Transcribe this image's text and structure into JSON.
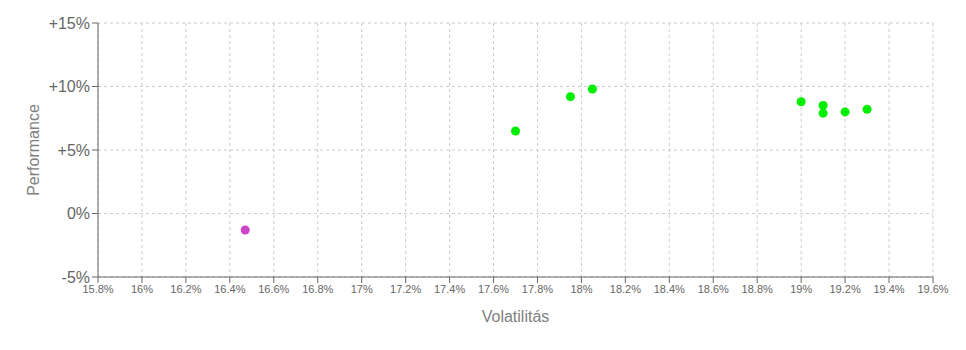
{
  "chart_data": {
    "type": "scatter",
    "xlabel": "Volatilitás",
    "ylabel": "Performance",
    "xlim": [
      0.158,
      0.196
    ],
    "ylim": [
      -0.05,
      0.15
    ],
    "xticks": [
      {
        "value": 0.158,
        "label": "15.8%"
      },
      {
        "value": 0.16,
        "label": "16%"
      },
      {
        "value": 0.162,
        "label": "16.2%"
      },
      {
        "value": 0.164,
        "label": "16.4%"
      },
      {
        "value": 0.166,
        "label": "16.6%"
      },
      {
        "value": 0.168,
        "label": "16.8%"
      },
      {
        "value": 0.17,
        "label": "17%"
      },
      {
        "value": 0.172,
        "label": "17.2%"
      },
      {
        "value": 0.174,
        "label": "17.4%"
      },
      {
        "value": 0.176,
        "label": "17.6%"
      },
      {
        "value": 0.178,
        "label": "17.8%"
      },
      {
        "value": 0.18,
        "label": "18%"
      },
      {
        "value": 0.182,
        "label": "18.2%"
      },
      {
        "value": 0.184,
        "label": "18.4%"
      },
      {
        "value": 0.186,
        "label": "18.6%"
      },
      {
        "value": 0.188,
        "label": "18.8%"
      },
      {
        "value": 0.19,
        "label": "19%"
      },
      {
        "value": 0.192,
        "label": "19.2%"
      },
      {
        "value": 0.194,
        "label": "19.4%"
      },
      {
        "value": 0.196,
        "label": "19.6%"
      }
    ],
    "yticks": [
      {
        "value": -0.05,
        "label": "-5%"
      },
      {
        "value": 0.0,
        "label": "0%"
      },
      {
        "value": 0.05,
        "label": "+5%"
      },
      {
        "value": 0.1,
        "label": "+10%"
      },
      {
        "value": 0.15,
        "label": "+15%"
      }
    ],
    "grid": true,
    "series": [
      {
        "color": "#00ee00",
        "x": [
          0.177,
          0.1795,
          0.1805,
          0.19,
          0.191,
          0.191,
          0.192,
          0.193
        ],
        "values": [
          0.065,
          0.092,
          0.098,
          0.088,
          0.085,
          0.079,
          0.08,
          0.082
        ]
      },
      {
        "color": "#cc44cc",
        "x": [
          0.1647
        ],
        "values": [
          -0.013
        ]
      }
    ]
  }
}
